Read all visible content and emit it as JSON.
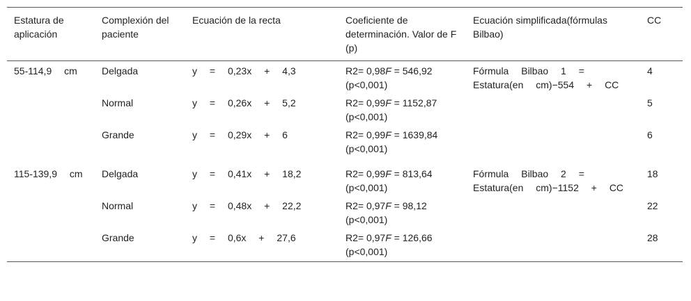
{
  "headers": {
    "estatura": "Estatura de aplicación",
    "complexion": "Complexión del paciente",
    "ecuacion": "Ecuación de la recta",
    "coeficiente": "Coeficiente de determinación. Valor de F (p)",
    "simplificada": "Ecuación simplificada(fórmulas Bilbao)",
    "cc": "CC"
  },
  "groups": [
    {
      "estatura": "55-114,9 cm",
      "formula": "Fórmula Bilbao 1 = Estatura(en cm)−554 + CC",
      "rows": [
        {
          "complexion": "Delgada",
          "ecuacion": "y = 0,23x + 4,3",
          "r2": "R2= 0,98",
          "f": "F",
          "fval": " = 546,92 (p<0,001)",
          "cc": "4"
        },
        {
          "complexion": "Normal",
          "ecuacion": "y = 0,26x + 5,2",
          "r2": "R2= 0,99",
          "f": "F",
          "fval": " = 1152,87 (p<0,001)",
          "cc": "5"
        },
        {
          "complexion": "Grande",
          "ecuacion": "y = 0,29x + 6",
          "r2": "R2= 0,99",
          "f": "F",
          "fval": " = 1639,84 (p<0,001)",
          "cc": "6"
        }
      ]
    },
    {
      "estatura": "115-139,9 cm",
      "formula": "Fórmula Bilbao 2 = Estatura(en cm)−1152 + CC",
      "rows": [
        {
          "complexion": "Delgada",
          "ecuacion": "y = 0,41x + 18,2",
          "r2": "R2= 0,99",
          "f": "F",
          "fval": " = 813,64 (p<0,001)",
          "cc": "18"
        },
        {
          "complexion": "Normal",
          "ecuacion": "y = 0,48x + 22,2",
          "r2": "R2= 0,97",
          "f": "F",
          "fval": " = 98,12 (p<0,001)",
          "cc": "22"
        },
        {
          "complexion": "Grande",
          "ecuacion": "y = 0,6x + 27,6",
          "r2": "R2= 0,97",
          "f": "F",
          "fval": " = 126,66 (p<0,001)",
          "cc": "28"
        }
      ]
    }
  ]
}
